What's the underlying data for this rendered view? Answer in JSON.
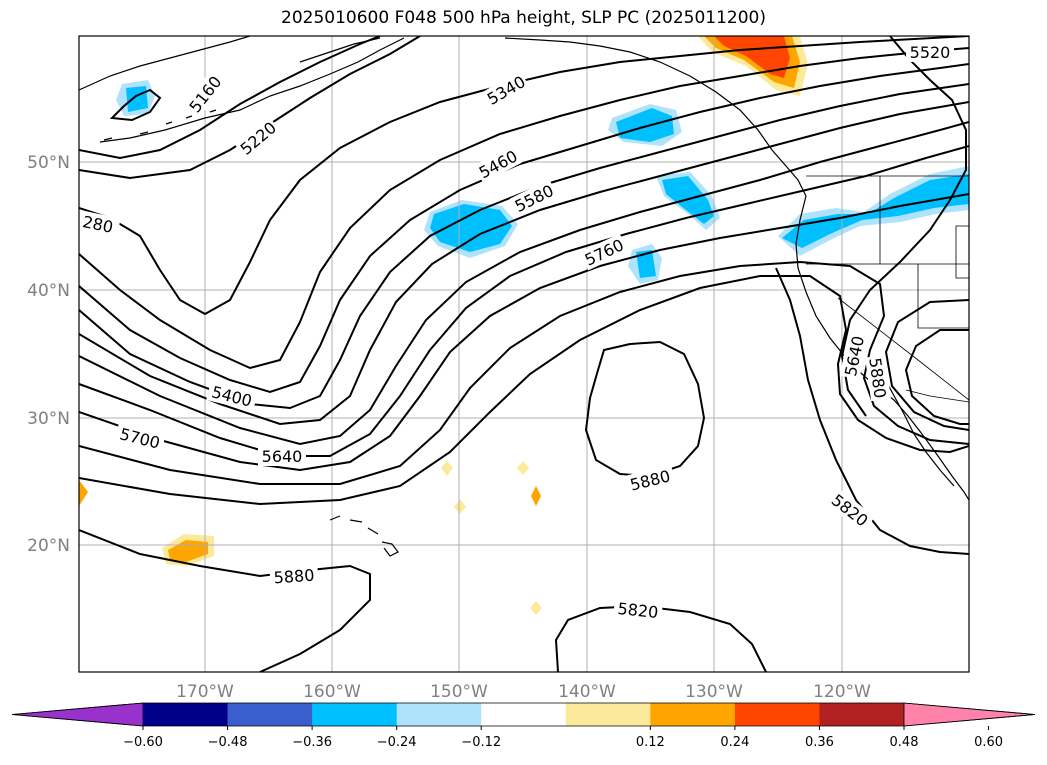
{
  "title": "2025010600 F048 500 hPa height, SLP PC (2025011200)",
  "latitude_labels": [
    "50°N",
    "40°N",
    "30°N",
    "20°N"
  ],
  "longitude_labels": [
    "170°W",
    "160°W",
    "150°W",
    "140°W",
    "130°W",
    "120°W"
  ],
  "contour_labels": [
    "5160",
    "5220",
    "5340",
    "5460",
    "5580",
    "5760",
    "5520",
    "280",
    "5400",
    "5700",
    "5640",
    "5880",
    "5880",
    "5820",
    "5820",
    "5640",
    "5880"
  ],
  "colorbar": {
    "tick_labels": [
      "−0.60",
      "−0.48",
      "−0.36",
      "−0.24",
      "−0.12",
      "0.12",
      "0.24",
      "0.36",
      "0.48",
      "0.60"
    ],
    "colors": [
      "#9932cc",
      "#00008b",
      "#3a5fcd",
      "#00bfff",
      "#afe2fb",
      "#ffffff",
      "#fde99a",
      "#ffa500",
      "#ff4500",
      "#b22222",
      "#ff82ab"
    ]
  },
  "colors": {
    "contour": "#000000",
    "grid": "#b0b0b0",
    "coast": "#000000",
    "axis_label": "#808080"
  }
}
